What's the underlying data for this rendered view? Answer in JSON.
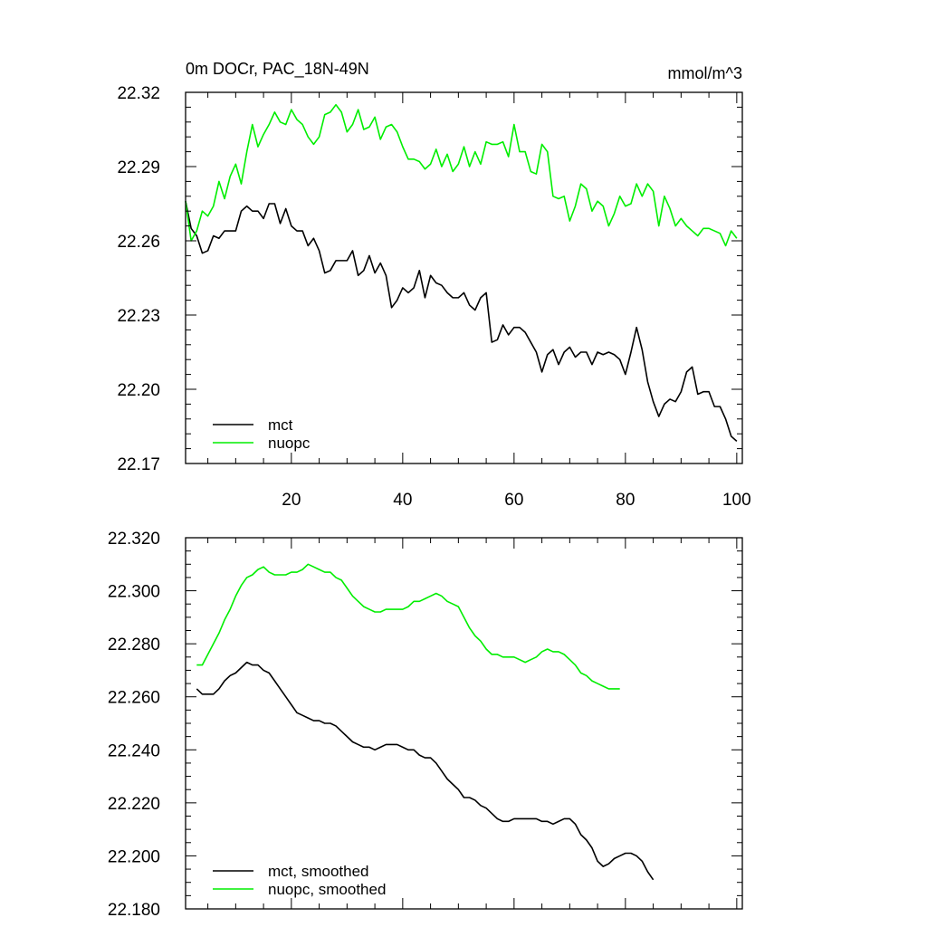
{
  "colors": {
    "series1": "#000000",
    "series2": "#00ee00",
    "axis": "#000000"
  },
  "chart_data": [
    {
      "type": "line",
      "title": "0m DOCr, PAC_18N-49N",
      "units": "mmol/m^3",
      "xlim": [
        1,
        101
      ],
      "ylim": [
        22.17,
        22.32
      ],
      "xticks": [
        20,
        40,
        60,
        80,
        100
      ],
      "xtick_labels": [
        "20",
        "40",
        "60",
        "80",
        "100"
      ],
      "yticks": [
        22.17,
        22.2,
        22.23,
        22.26,
        22.29,
        22.32
      ],
      "ytick_labels": [
        "22.17",
        "22.20",
        "22.23",
        "22.26",
        "22.29",
        "22.32"
      ],
      "legend_position": "bottom-left",
      "x_start": 1,
      "series": [
        {
          "name": "mct",
          "values": [
            22.276,
            22.265,
            22.262,
            22.255,
            22.256,
            22.262,
            22.261,
            22.264,
            22.264,
            22.264,
            22.272,
            22.274,
            22.272,
            22.272,
            22.269,
            22.275,
            22.275,
            22.267,
            22.273,
            22.266,
            22.264,
            22.264,
            22.258,
            22.261,
            22.256,
            22.247,
            22.248,
            22.252,
            22.252,
            22.252,
            22.256,
            22.246,
            22.248,
            22.254,
            22.247,
            22.251,
            22.246,
            22.233,
            22.236,
            22.241,
            22.239,
            22.241,
            22.248,
            22.237,
            22.246,
            22.243,
            22.242,
            22.239,
            22.237,
            22.237,
            22.239,
            22.234,
            22.232,
            22.237,
            22.239,
            22.219,
            22.22,
            22.226,
            22.222,
            22.225,
            22.225,
            22.223,
            22.219,
            22.215,
            22.207,
            22.214,
            22.216,
            22.21,
            22.215,
            22.217,
            22.213,
            22.215,
            22.215,
            22.21,
            22.215,
            22.214,
            22.215,
            22.214,
            22.212,
            22.206,
            22.215,
            22.225,
            22.216,
            22.203,
            22.195,
            22.189,
            22.194,
            22.196,
            22.195,
            22.199,
            22.207,
            22.209,
            22.198,
            22.199,
            22.199,
            22.193,
            22.193,
            22.188,
            22.181,
            22.179
          ]
        },
        {
          "name": "nuopc",
          "values": [
            22.276,
            22.26,
            22.264,
            22.272,
            22.27,
            22.274,
            22.284,
            22.277,
            22.286,
            22.291,
            22.283,
            22.296,
            22.307,
            22.298,
            22.303,
            22.307,
            22.312,
            22.308,
            22.307,
            22.313,
            22.309,
            22.307,
            22.302,
            22.299,
            22.302,
            22.311,
            22.312,
            22.315,
            22.312,
            22.304,
            22.307,
            22.313,
            22.305,
            22.306,
            22.31,
            22.301,
            22.306,
            22.307,
            22.304,
            22.298,
            22.293,
            22.293,
            22.292,
            22.289,
            22.291,
            22.297,
            22.29,
            22.295,
            22.288,
            22.291,
            22.298,
            22.29,
            22.296,
            22.291,
            22.3,
            22.299,
            22.299,
            22.3,
            22.294,
            22.307,
            22.296,
            22.296,
            22.288,
            22.287,
            22.299,
            22.296,
            22.278,
            22.277,
            22.278,
            22.268,
            22.274,
            22.283,
            22.281,
            22.272,
            22.276,
            22.274,
            22.266,
            22.271,
            22.278,
            22.274,
            22.275,
            22.283,
            22.278,
            22.283,
            22.28,
            22.266,
            22.278,
            22.273,
            22.266,
            22.269,
            22.266,
            22.264,
            22.262,
            22.265,
            22.265,
            22.264,
            22.263,
            22.258,
            22.264,
            22.261
          ]
        }
      ]
    },
    {
      "type": "line",
      "title": "",
      "units": "",
      "xlim": [
        1,
        101
      ],
      "ylim": [
        22.18,
        22.32
      ],
      "xticks": [
        20,
        40,
        60,
        80,
        100
      ],
      "xtick_labels": [
        "",
        "",
        "",
        "",
        ""
      ],
      "yticks": [
        22.18,
        22.2,
        22.22,
        22.24,
        22.26,
        22.28,
        22.3,
        22.32
      ],
      "ytick_labels": [
        "22.180",
        "22.200",
        "22.220",
        "22.240",
        "22.260",
        "22.280",
        "22.300",
        "22.320"
      ],
      "legend_position": "bottom-left",
      "x_start": 3,
      "series": [
        {
          "name": "mct, smoothed",
          "values": [
            22.263,
            22.261,
            22.261,
            22.261,
            22.263,
            22.266,
            22.268,
            22.269,
            22.271,
            22.273,
            22.272,
            22.272,
            22.27,
            22.269,
            22.266,
            22.263,
            22.26,
            22.257,
            22.254,
            22.253,
            22.252,
            22.251,
            22.251,
            22.25,
            22.25,
            22.249,
            22.247,
            22.245,
            22.243,
            22.242,
            22.241,
            22.241,
            22.24,
            22.241,
            22.242,
            22.242,
            22.242,
            22.241,
            22.24,
            22.24,
            22.238,
            22.237,
            22.237,
            22.235,
            22.232,
            22.229,
            22.227,
            22.225,
            22.222,
            22.222,
            22.221,
            22.219,
            22.218,
            22.216,
            22.214,
            22.213,
            22.213,
            22.214,
            22.214,
            22.214,
            22.214,
            22.214,
            22.213,
            22.213,
            22.212,
            22.213,
            22.214,
            22.214,
            22.212,
            22.208,
            22.206,
            22.203,
            22.198,
            22.196,
            22.197,
            22.199,
            22.2,
            22.201,
            22.201,
            22.2,
            22.198,
            22.194,
            22.191
          ]
        },
        {
          "name": "nuopc, smoothed",
          "values": [
            22.272,
            22.272,
            22.276,
            22.28,
            22.284,
            22.289,
            22.293,
            22.298,
            22.302,
            22.305,
            22.306,
            22.308,
            22.309,
            22.307,
            22.306,
            22.306,
            22.306,
            22.307,
            22.307,
            22.308,
            22.31,
            22.309,
            22.308,
            22.307,
            22.307,
            22.305,
            22.304,
            22.301,
            22.298,
            22.296,
            22.294,
            22.293,
            22.292,
            22.292,
            22.293,
            22.293,
            22.293,
            22.293,
            22.294,
            22.296,
            22.296,
            22.297,
            22.298,
            22.299,
            22.298,
            22.296,
            22.295,
            22.294,
            22.29,
            22.286,
            22.283,
            22.281,
            22.278,
            22.276,
            22.276,
            22.275,
            22.275,
            22.275,
            22.274,
            22.273,
            22.274,
            22.275,
            22.277,
            22.278,
            22.277,
            22.277,
            22.276,
            22.274,
            22.272,
            22.269,
            22.268,
            22.266,
            22.265,
            22.264,
            22.263,
            22.263,
            22.263
          ]
        }
      ]
    }
  ]
}
